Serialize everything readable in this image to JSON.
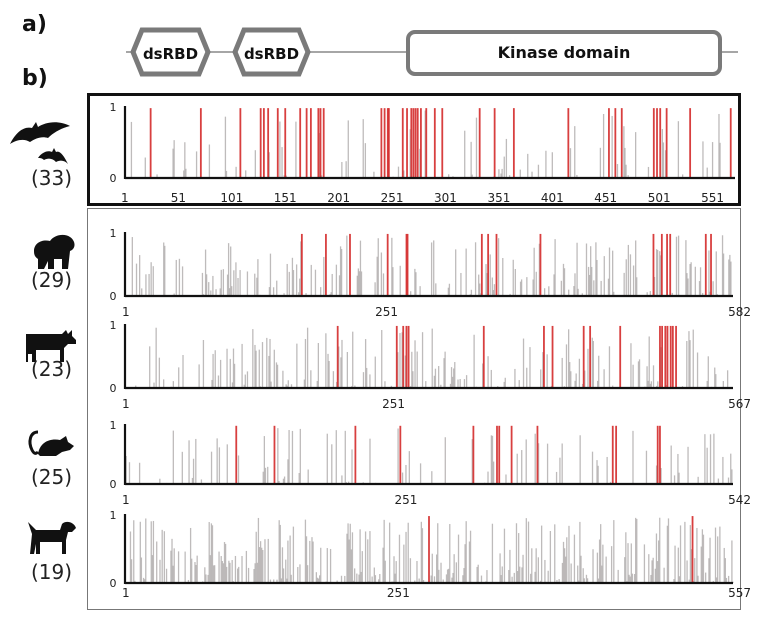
{
  "panel_labels": {
    "a": "a)",
    "b": "b)"
  },
  "domain_diagram": {
    "domains": [
      {
        "name": "dsRBD",
        "shape": "hexagon"
      },
      {
        "name": "dsRBD",
        "shape": "hexagon"
      },
      {
        "name": "Kinase domain",
        "shape": "rounded-rect"
      }
    ],
    "colors": {
      "outline": "#7a7a7a",
      "line": "#888888"
    }
  },
  "colors": {
    "selected": "#d42a2a",
    "background_bar": "#a8a4a4",
    "axis": "#111111"
  },
  "chart_data": [
    {
      "type": "bar",
      "species": "bat",
      "icon": "bat-icon",
      "count_label": "(33)",
      "ylim": [
        0,
        1
      ],
      "yticks": [
        "0",
        "1"
      ],
      "xlim": [
        1,
        572
      ],
      "xticks": [
        1,
        51,
        101,
        151,
        201,
        251,
        301,
        351,
        401,
        451,
        501,
        551
      ],
      "highlighted": true,
      "selected_sites": [
        25,
        72,
        109,
        128,
        131,
        135,
        144,
        151,
        165,
        171,
        175,
        182,
        184,
        187,
        241,
        244,
        247,
        248,
        261,
        265,
        269,
        271,
        273,
        275,
        278,
        283,
        291,
        298,
        333,
        347,
        365,
        416,
        454,
        460,
        466,
        496,
        499,
        502,
        508,
        530,
        568
      ],
      "background_density": "low"
    },
    {
      "type": "bar",
      "species": "primate",
      "icon": "gorilla-icon",
      "count_label": "(29)",
      "ylim": [
        0,
        1
      ],
      "yticks": [
        "0",
        "1"
      ],
      "xlim": [
        1,
        582
      ],
      "xticks": [
        1,
        251,
        582
      ],
      "highlighted": false,
      "selected_sites": [
        170,
        193,
        216,
        252,
        270,
        271,
        342,
        348,
        356,
        398,
        506,
        514,
        519,
        522,
        556,
        561
      ],
      "background_density": "medium"
    },
    {
      "type": "bar",
      "species": "cow",
      "icon": "cow-icon",
      "count_label": "(23)",
      "ylim": [
        0,
        1
      ],
      "yticks": [
        "0",
        "1"
      ],
      "xlim": [
        1,
        567
      ],
      "xticks": [
        1,
        251,
        567
      ],
      "highlighted": false,
      "selected_sites": [
        199,
        254,
        260,
        263,
        265,
        335,
        391,
        399,
        428,
        434,
        462,
        499,
        501,
        504,
        506,
        509,
        511,
        514
      ],
      "background_density": "medium"
    },
    {
      "type": "bar",
      "species": "mouse",
      "icon": "mouse-icon",
      "count_label": "(25)",
      "ylim": [
        0,
        1
      ],
      "yticks": [
        "0",
        "1"
      ],
      "xlim": [
        1,
        542
      ],
      "xticks": [
        1,
        251,
        542
      ],
      "highlighted": false,
      "selected_sites": [
        100,
        134,
        206,
        246,
        311,
        332,
        334,
        345,
        368,
        435,
        438,
        475,
        477
      ],
      "background_density": "low"
    },
    {
      "type": "bar",
      "species": "dog",
      "icon": "dog-icon",
      "count_label": "(19)",
      "ylim": [
        0,
        1
      ],
      "yticks": [
        "0",
        "1"
      ],
      "xlim": [
        1,
        557
      ],
      "xticks": [
        1,
        251,
        557
      ],
      "highlighted": false,
      "selected_sites": [
        279,
        520
      ],
      "background_density": "high"
    }
  ]
}
